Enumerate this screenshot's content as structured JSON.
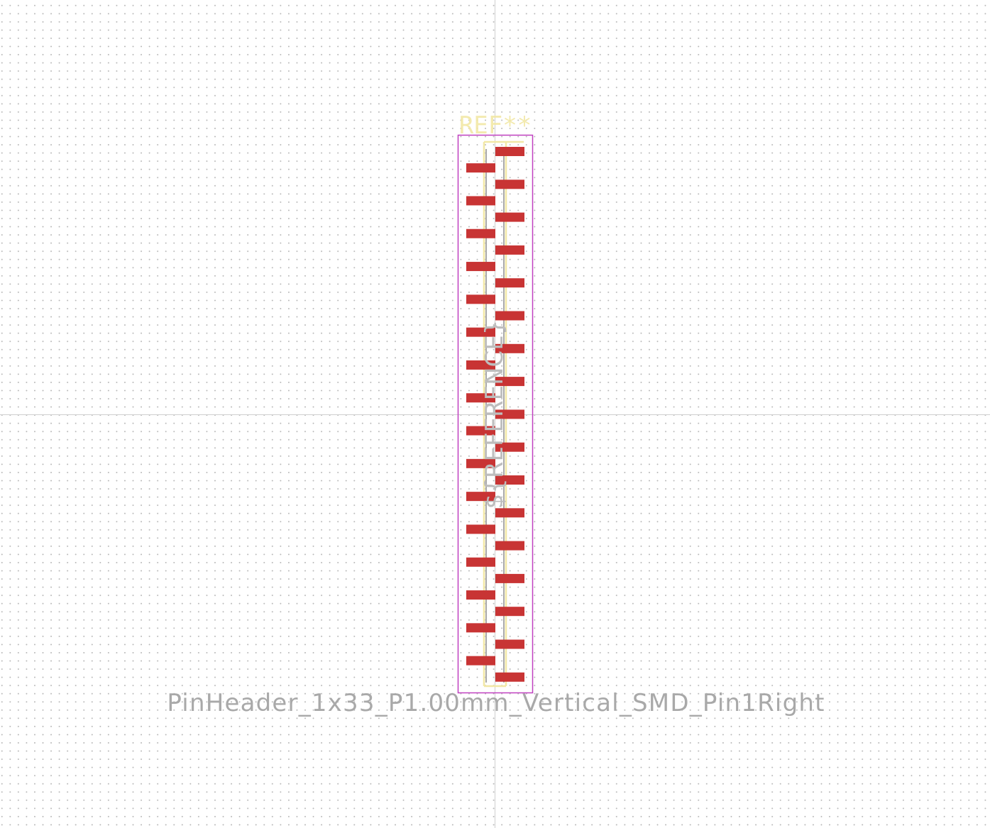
{
  "footprint": {
    "reference": "REF**",
    "value": "PinHeader_1x33_P1.00mm_Vertical_SMD_Pin1Right",
    "fab_reference": "${REFERENCE}",
    "pin_count": 33,
    "pitch_mm": 1.0,
    "pin1_side": "right"
  },
  "colors": {
    "background": "#ffffff",
    "grid_dots": "#b9b9b9",
    "crosshair": "#c8c8c8",
    "pads": "#c83434",
    "silkscreen": "#f2e8a6",
    "courtyard": "#c040c0",
    "fab_text": "#a9a9a9"
  }
}
